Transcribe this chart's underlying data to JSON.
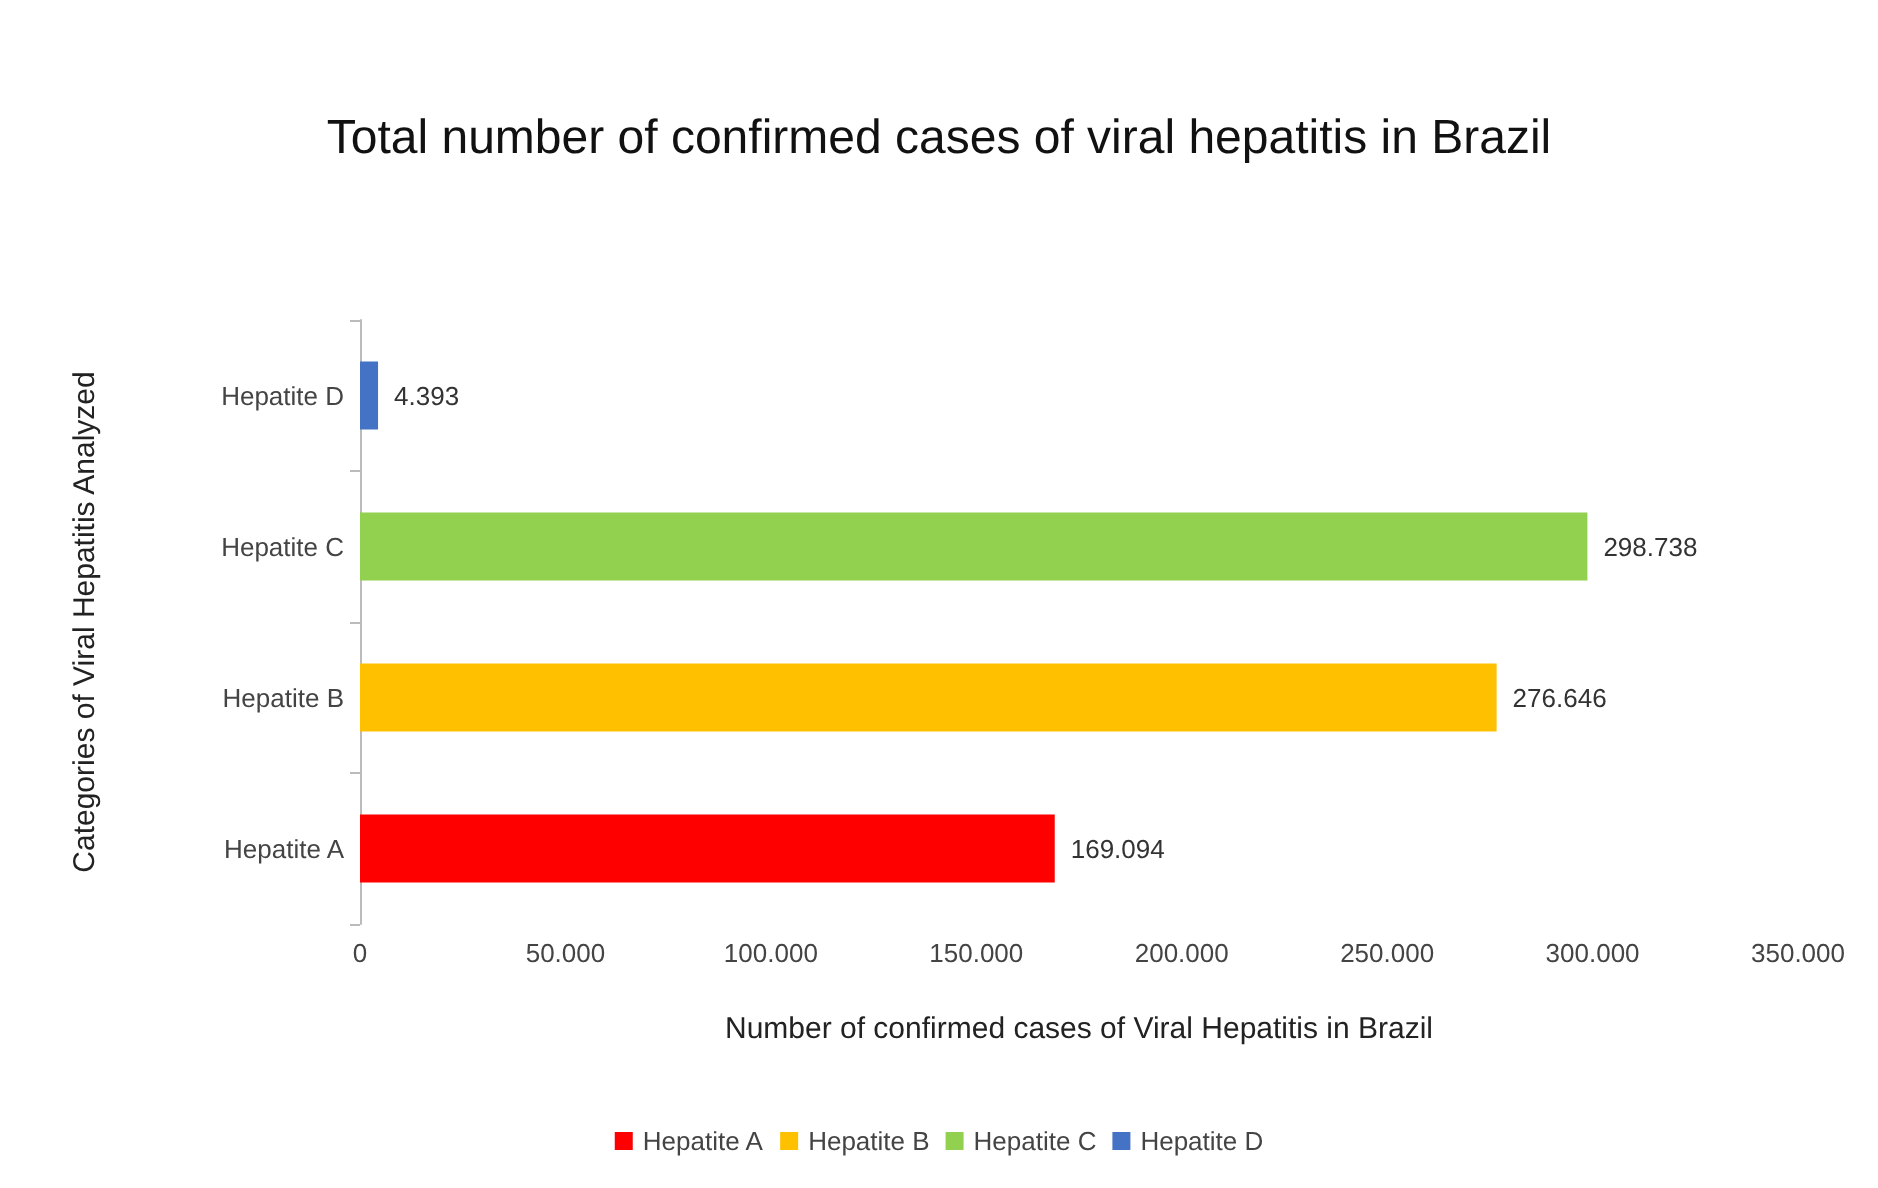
{
  "chart_data": {
    "type": "bar",
    "orientation": "horizontal",
    "title": "Total number of confirmed cases of viral hepatitis in Brazil",
    "xlabel": "Number of confirmed cases of Viral Hepatitis in Brazil",
    "ylabel": "Categories of Viral Hepatitis Analyzed",
    "categories": [
      "Hepatite D",
      "Hepatite C",
      "Hepatite B",
      "Hepatite A"
    ],
    "series": [
      {
        "name": "Hepatite A",
        "color": "#ff0000",
        "values": [
          null,
          null,
          null,
          169094
        ],
        "value_labels": [
          null,
          null,
          null,
          "169.094"
        ]
      },
      {
        "name": "Hepatite B",
        "color": "#ffc000",
        "values": [
          null,
          null,
          276646,
          null
        ],
        "value_labels": [
          null,
          null,
          "276.646",
          null
        ]
      },
      {
        "name": "Hepatite C",
        "color": "#92d050",
        "values": [
          null,
          298738,
          null,
          null
        ],
        "value_labels": [
          null,
          "298.738",
          null,
          null
        ]
      },
      {
        "name": "Hepatite D",
        "color": "#4472c4",
        "values": [
          4393,
          null,
          null,
          null
        ],
        "value_labels": [
          "4.393",
          null,
          null,
          null
        ]
      }
    ],
    "xlim": [
      0,
      350000
    ],
    "xticks": [
      0,
      {
        "value": 50000,
        "label": "50.000"
      },
      {
        "value": 100000,
        "label": "100.000"
      },
      {
        "value": 150000,
        "label": "150.000"
      },
      {
        "value": 200000,
        "label": "200.000"
      },
      {
        "value": 250000,
        "label": "250.000"
      },
      {
        "value": 300000,
        "label": "300.000"
      },
      {
        "value": 350000,
        "label": "350.000"
      }
    ],
    "grid": false,
    "legend": "bottom"
  }
}
